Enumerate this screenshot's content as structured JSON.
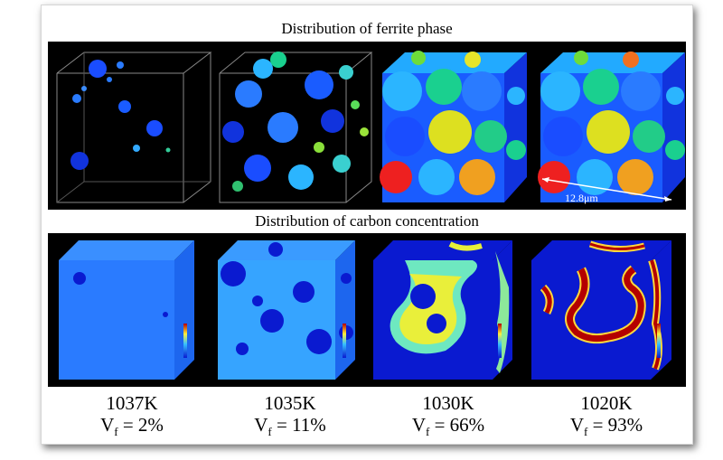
{
  "figure": {
    "title_top": "Distribution of ferrite phase",
    "title_bottom": "Distribution of carbon concentration",
    "scale_bar": "12.8μm",
    "colors": {
      "background": "#000000",
      "matrix_blue": "#2a7bff",
      "ferrite_dark": "#0a1ad0",
      "carbon_rich_red": "#b40000",
      "carbon_mid_yellow": "#ffee3a"
    },
    "columns": [
      {
        "temperature": "1037K",
        "vf_prefix": "V",
        "vf_sub": "f",
        "vf_value": " = 2%"
      },
      {
        "temperature": "1035K",
        "vf_prefix": "V",
        "vf_sub": "f",
        "vf_value": " = 11%"
      },
      {
        "temperature": "1030K",
        "vf_prefix": "V",
        "vf_sub": "f",
        "vf_value": " = 66%"
      },
      {
        "temperature": "1020K",
        "vf_prefix": "V",
        "vf_sub": "f",
        "vf_value": " = 93%"
      }
    ]
  }
}
